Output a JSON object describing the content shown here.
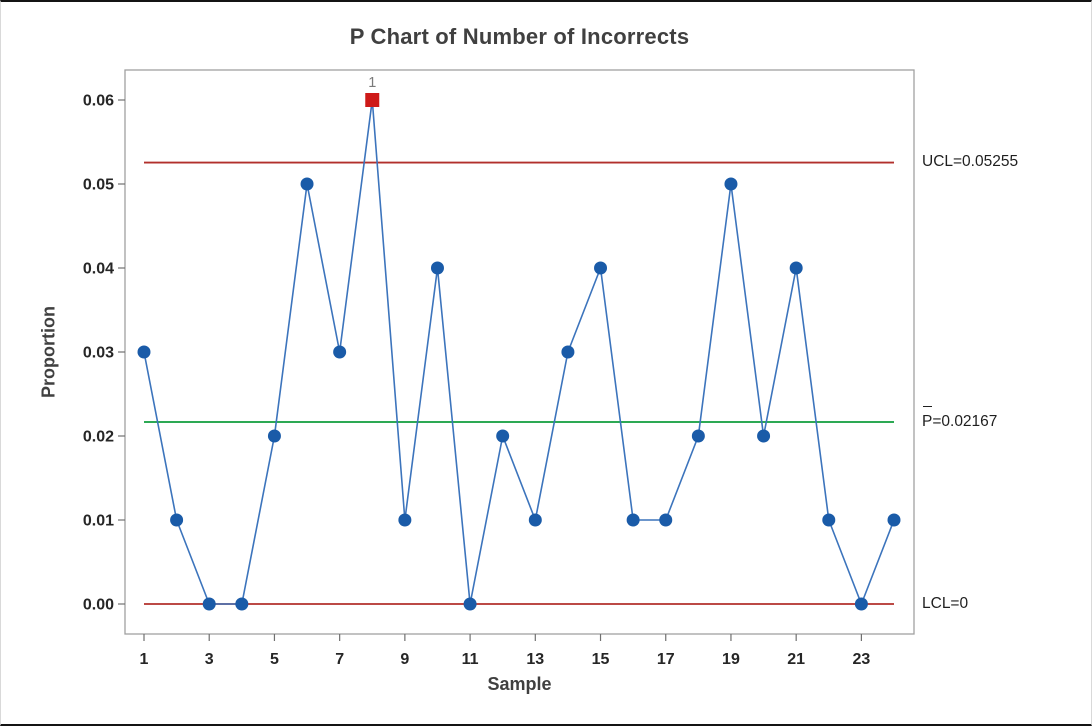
{
  "window": {
    "background": "#ffffff"
  },
  "title": "P Chart of Number of Incorrects",
  "axis_titles": {
    "y": "Proportion",
    "x": "Sample"
  },
  "control_labels": {
    "ucl": "UCL=0.05255",
    "center": "P=0.02167",
    "center_has_bar": true,
    "lcl": "LCL=0"
  },
  "chart_data": {
    "type": "line",
    "title": "P Chart of Number of Incorrects",
    "xlabel": "Sample",
    "ylabel": "Proportion",
    "x": [
      1,
      2,
      3,
      4,
      5,
      6,
      7,
      8,
      9,
      10,
      11,
      12,
      13,
      14,
      15,
      16,
      17,
      18,
      19,
      20,
      21,
      22,
      23,
      24
    ],
    "values": [
      0.03,
      0.01,
      0.0,
      0.0,
      0.02,
      0.05,
      0.03,
      0.06,
      0.01,
      0.04,
      0.0,
      0.02,
      0.01,
      0.03,
      0.04,
      0.01,
      0.01,
      0.02,
      0.05,
      0.02,
      0.04,
      0.01,
      0.0,
      0.01
    ],
    "out_of_control_points": [
      {
        "sample": 8,
        "value": 0.06,
        "flag_label": "1"
      }
    ],
    "control_limits": {
      "ucl": 0.05255,
      "center": 0.02167,
      "lcl": 0
    },
    "x_ticks": [
      1,
      3,
      5,
      7,
      9,
      11,
      13,
      15,
      17,
      19,
      21,
      23
    ],
    "y_ticks": [
      "0.00",
      "0.01",
      "0.02",
      "0.03",
      "0.04",
      "0.05",
      "0.06"
    ],
    "ylim": [
      0,
      0.06
    ],
    "xlim": [
      1,
      24
    ],
    "grid": false,
    "legend": "none",
    "colors": {
      "series_line": "#3c74bc",
      "marker": "#1a5ba8",
      "limit_line": "#b2302c",
      "center_line": "#0f9d3c",
      "ooc_marker": "#ce1a18",
      "ooc_flag": "#7a7a7a",
      "frame": "#a0a0a0",
      "tick": "#707070",
      "tick_label": "#262626"
    }
  }
}
